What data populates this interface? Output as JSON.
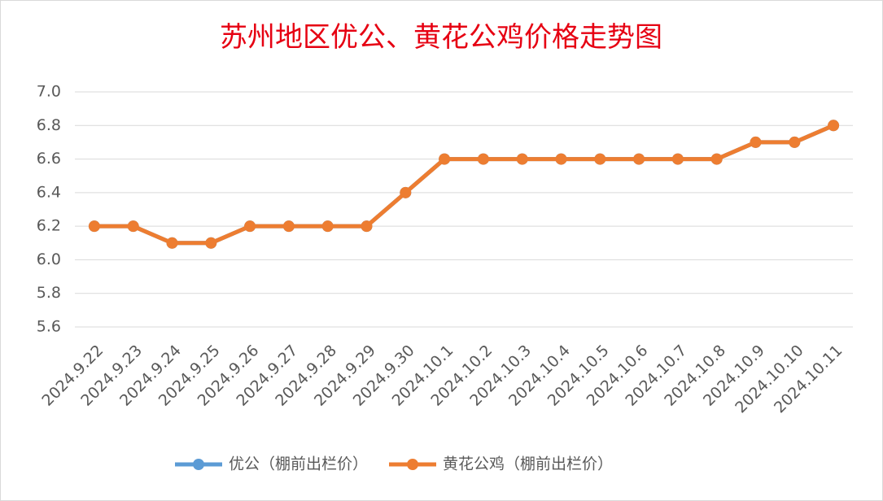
{
  "chart_data": {
    "type": "line",
    "title": "苏州地区优公、黄花公鸡价格走势图",
    "categories": [
      "2024.9.22",
      "2024.9.23",
      "2024.9.24",
      "2024.9.25",
      "2024.9.26",
      "2024.9.27",
      "2024.9.28",
      "2024.9.29",
      "2024.9.30",
      "2024.10.1",
      "2024.10.2",
      "2024.10.3",
      "2024.10.4",
      "2024.10.5",
      "2024.10.6",
      "2024.10.7",
      "2024.10.8",
      "2024.10.9",
      "2024.10.10",
      "2024.10.11"
    ],
    "series": [
      {
        "name": "优公（棚前出栏价）",
        "color": "#5b9bd5",
        "values": [
          6.2,
          6.2,
          6.1,
          6.1,
          6.2,
          6.2,
          6.2,
          6.2,
          6.4,
          6.6,
          6.6,
          6.6,
          6.6,
          6.6,
          6.6,
          6.6,
          6.6,
          6.7,
          6.7,
          6.8
        ]
      },
      {
        "name": "黄花公鸡（棚前出栏价）",
        "color": "#ed7d31",
        "values": [
          6.2,
          6.2,
          6.1,
          6.1,
          6.2,
          6.2,
          6.2,
          6.2,
          6.4,
          6.6,
          6.6,
          6.6,
          6.6,
          6.6,
          6.6,
          6.6,
          6.6,
          6.7,
          6.7,
          6.8
        ]
      }
    ],
    "ylim": [
      5.6,
      7.0
    ],
    "yticks": [
      5.6,
      5.8,
      {
        "value": 6,
        "label": "6.0"
      },
      6.2,
      6.4,
      6.6,
      6.8,
      {
        "value": 7,
        "label": "7.0"
      }
    ],
    "grid": true,
    "legend": "bottom"
  }
}
